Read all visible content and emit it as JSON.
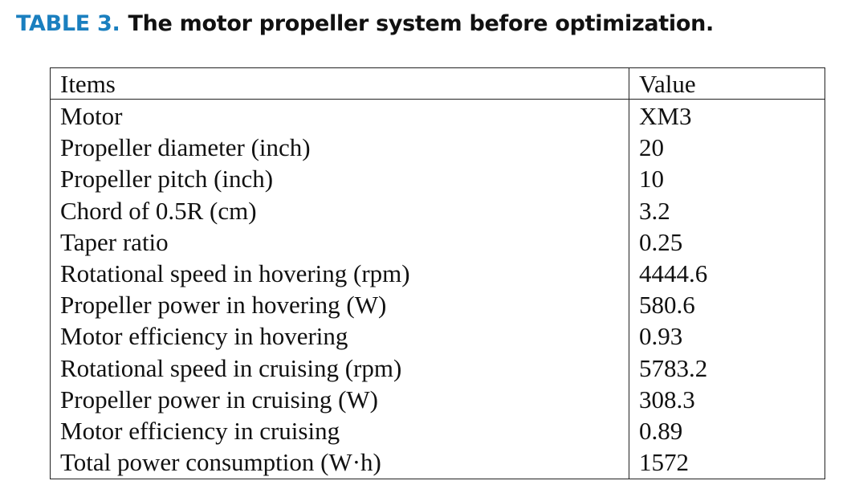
{
  "caption": {
    "label": "TABLE 3.",
    "title": "The motor propeller system before optimization."
  },
  "table": {
    "headers": [
      "Items",
      "Value"
    ],
    "rows": [
      [
        "Motor",
        "XM3"
      ],
      [
        "Propeller diameter (inch)",
        "20"
      ],
      [
        "Propeller pitch (inch)",
        "10"
      ],
      [
        "Chord of 0.5R (cm)",
        "3.2"
      ],
      [
        "Taper ratio",
        "0.25"
      ],
      [
        "Rotational speed in hovering (rpm)",
        "4444.6"
      ],
      [
        "Propeller power in hovering (W)",
        "580.6"
      ],
      [
        "Motor efficiency in hovering",
        "0.93"
      ],
      [
        "Rotational speed in cruising (rpm)",
        "5783.2"
      ],
      [
        "Propeller power in cruising (W)",
        "308.3"
      ],
      [
        "Motor efficiency in cruising",
        "0.89"
      ],
      [
        "Total power consumption (W·h)",
        "1572"
      ]
    ]
  },
  "colors": {
    "label": "#1a7fbf",
    "text": "#111111"
  }
}
